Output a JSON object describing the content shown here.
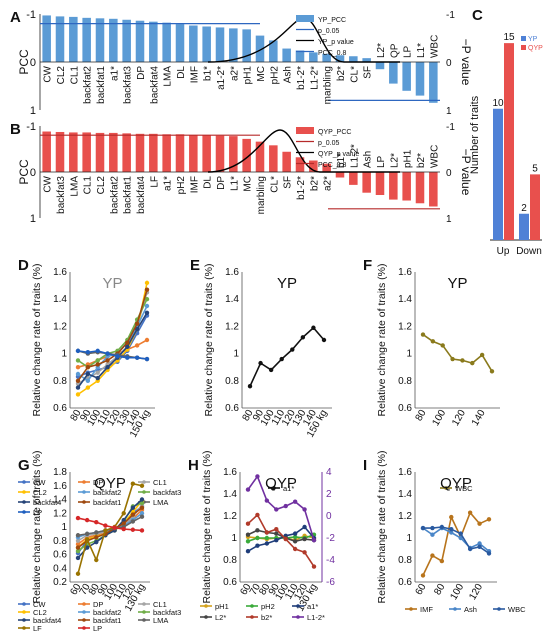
{
  "chart_data": [
    {
      "id": "A",
      "type": "bar",
      "panel_label": "A",
      "ylabel": "PCC",
      "ylabel_right": "−P value",
      "ylim": [
        -1,
        1
      ],
      "yticks": [
        "-1",
        "0",
        "1"
      ],
      "yticks_right": [
        "-1",
        "0",
        "1"
      ],
      "categories": [
        "CW",
        "CL2",
        "CL1",
        "backfat2",
        "backfat1",
        "a1*",
        "backfat3",
        "DP",
        "backfat4",
        "LMA",
        "DL",
        "IMF",
        "b1*",
        "a1-2*",
        "a2*",
        "pH1",
        "MC",
        "pH2",
        "Ash",
        "b1-2*",
        "L1-2*",
        "marbling",
        "b2*",
        "CL*",
        "SF",
        "L2*",
        "QP",
        "LP",
        "L1*",
        "WBC"
      ],
      "values": [
        0.97,
        0.95,
        0.94,
        0.92,
        0.91,
        0.9,
        0.88,
        0.86,
        0.84,
        0.82,
        0.79,
        0.76,
        0.74,
        0.72,
        0.7,
        0.68,
        0.55,
        0.45,
        0.28,
        0.24,
        0.2,
        0.17,
        0.14,
        0.12,
        0.08,
        -0.15,
        -0.45,
        -0.6,
        -0.7,
        -0.85
      ],
      "legend": [
        "YP_PCC",
        "p_0.05",
        "YP_p value",
        "PCC_0.8"
      ]
    },
    {
      "id": "B",
      "type": "bar",
      "panel_label": "B",
      "ylabel": "PCC",
      "ylabel_right": "−P value",
      "ylim": [
        -1,
        1
      ],
      "yticks": [
        "-1",
        "0",
        "1"
      ],
      "yticks_right": [
        "-1",
        "0",
        "1"
      ],
      "categories": [
        "CW",
        "backfat3",
        "LMA",
        "CL1",
        "CL2",
        "backfat2",
        "backfat1",
        "backfat4",
        "LF",
        "a1*",
        "pH2",
        "IMF",
        "DL",
        "DP",
        "L1*",
        "MC",
        "marbling",
        "CL*",
        "SF",
        "b1-2*",
        "b2*",
        "a2*",
        "b1*",
        "L1-2*",
        "Ash",
        "LP",
        "L2*",
        "pH1",
        "b2*",
        "WBC"
      ],
      "values": [
        0.88,
        0.87,
        0.86,
        0.86,
        0.85,
        0.85,
        0.84,
        0.83,
        0.83,
        0.82,
        0.82,
        0.8,
        0.8,
        0.79,
        0.78,
        0.72,
        0.66,
        0.58,
        0.44,
        0.32,
        0.25,
        0.18,
        -0.12,
        -0.28,
        -0.45,
        -0.5,
        -0.6,
        -0.62,
        -0.68,
        -0.75
      ],
      "legend": [
        "QYP_PCC",
        "p_0.05",
        "QYP_p value",
        "PCC_0.8"
      ]
    },
    {
      "id": "C",
      "type": "bar",
      "panel_label": "C",
      "ylabel": "Number of traits",
      "categories": [
        "Up",
        "Down"
      ],
      "ylim": [
        0,
        16
      ],
      "series": [
        {
          "name": "YP",
          "values": [
            10,
            2
          ],
          "color": "#4f81d6"
        },
        {
          "name": "QYP",
          "values": [
            15,
            5
          ],
          "color": "#e8504d"
        }
      ]
    },
    {
      "id": "D",
      "type": "line",
      "panel_label": "D",
      "title": "YP",
      "ylabel": "Relative change rate of traits (%)",
      "ylim": [
        0.6,
        1.6
      ],
      "yticks": [
        "0.6",
        "0.8",
        "1",
        "1.2",
        "1.4",
        "1.6"
      ],
      "xticks": [
        "80",
        "90",
        "100",
        "110",
        "120",
        "130",
        "140",
        "150 kg"
      ],
      "legend": [
        "CW",
        "DP",
        "CL1",
        "CL2",
        "backfat2",
        "backfat3",
        "backfat4",
        "backfat1",
        "LMA",
        "LP"
      ]
    },
    {
      "id": "E",
      "type": "line",
      "panel_label": "E",
      "title": "YP",
      "ylabel": "Relative change rate of traits (%)",
      "ylim": [
        0.6,
        1.6
      ],
      "yticks": [
        "0.6",
        "0.8",
        "1",
        "1.2",
        "1.4",
        "1.6"
      ],
      "xticks": [
        "80",
        "90",
        "100",
        "110",
        "120",
        "130",
        "140",
        "150 kg"
      ],
      "series": [
        {
          "name": "a1*",
          "color": "#111111",
          "values": [
            0.76,
            0.93,
            0.88,
            0.96,
            1.03,
            1.12,
            1.19,
            1.1
          ]
        }
      ]
    },
    {
      "id": "F",
      "type": "line",
      "panel_label": "F",
      "title": "YP",
      "ylabel": "Relative change rate of traits (%)",
      "ylim": [
        0.6,
        1.6
      ],
      "yticks": [
        "0.6",
        "0.8",
        "1",
        "1.2",
        "1.4",
        "1.6"
      ],
      "xticks": [
        "80",
        "",
        "100",
        "",
        "120",
        "",
        "140",
        ""
      ],
      "series": [
        {
          "name": "WBC",
          "color": "#8a7a1c",
          "values": [
            1.14,
            1.09,
            1.06,
            0.96,
            0.95,
            0.93,
            0.99,
            0.87
          ]
        }
      ]
    },
    {
      "id": "G",
      "type": "line",
      "panel_label": "G",
      "title": "QYP",
      "ylabel": "Relative change rate of traits (%)",
      "ylim": [
        0.2,
        1.8
      ],
      "yticks": [
        "0.2",
        "0.4",
        "0.6",
        "0.8",
        "1",
        "1.2",
        "1.4",
        "1.6",
        "1.8"
      ],
      "xticks": [
        "60",
        "70",
        "80",
        "90",
        "100",
        "110",
        "120",
        "130 kg"
      ],
      "legend": [
        "CW",
        "DP",
        "CL1",
        "CL2",
        "backfat2",
        "backfat3",
        "backfat4",
        "backfat1",
        "LMA",
        "LF",
        "LP"
      ]
    },
    {
      "id": "H",
      "type": "line",
      "panel_label": "H",
      "title": "QYP",
      "ylabel": "Relative change rate of traits (%)",
      "ylim": [
        0.6,
        1.6
      ],
      "yticks": [
        "0.6",
        "0.8",
        "1",
        "1.2",
        "1.4",
        "1.6"
      ],
      "ylim_right": [
        -6,
        4
      ],
      "yticks_right": [
        "-6",
        "-4",
        "-2",
        "0",
        "2",
        "4"
      ],
      "xticks": [
        "60",
        "70",
        "80",
        "90",
        "100",
        "110",
        "120",
        "130 kg"
      ],
      "series": [
        {
          "name": "pH1",
          "color": "#d4a21c",
          "values": [
            1.01,
            1.0,
            0.99,
            1.0,
            1.0,
            0.98,
            1.02,
            1.0
          ],
          "axis": "left"
        },
        {
          "name": "pH2",
          "color": "#3aaa3a",
          "values": [
            0.97,
            1.0,
            1.0,
            1.0,
            1.0,
            1.01,
            1.0,
            1.03
          ],
          "axis": "left"
        },
        {
          "name": "a1*",
          "color": "#1f3d7a",
          "values": [
            0.88,
            0.93,
            0.95,
            0.98,
            1.02,
            1.04,
            1.1,
            1.0
          ],
          "axis": "left"
        },
        {
          "name": "L2*",
          "color": "#444444",
          "values": [
            1.03,
            1.07,
            1.05,
            1.04,
            1.0,
            0.97,
            0.99,
            0.98
          ],
          "axis": "left"
        },
        {
          "name": "b2*",
          "color": "#b13a2a",
          "values": [
            1.13,
            1.21,
            1.05,
            1.08,
            0.99,
            0.9,
            0.87,
            0.74
          ],
          "axis": "left"
        },
        {
          "name": "L1-2*",
          "color": "#7030a0",
          "values": [
            2.4,
            3.6,
            1.4,
            0.6,
            0.9,
            1.3,
            0.6,
            -2.2
          ],
          "axis": "right"
        }
      ]
    },
    {
      "id": "I",
      "type": "line",
      "panel_label": "I",
      "title": "QYP",
      "ylabel": "Relative change rate of traits (%)",
      "ylim": [
        0.6,
        1.6
      ],
      "yticks": [
        "0.6",
        "0.8",
        "1",
        "1.2",
        "1.4",
        "1.6"
      ],
      "xticks": [
        "60",
        "",
        "80",
        "",
        "100",
        "",
        "120",
        ""
      ],
      "series": [
        {
          "name": "IMF",
          "color": "#b8741c",
          "values": [
            0.66,
            0.84,
            0.79,
            1.19,
            1.01,
            1.23,
            1.13,
            1.17
          ]
        },
        {
          "name": "Ash",
          "color": "#4a86c8",
          "values": [
            1.09,
            1.03,
            1.09,
            1.05,
            1.0,
            0.91,
            0.95,
            0.88
          ]
        },
        {
          "name": "WBC",
          "color": "#2a5aa0",
          "values": [
            1.09,
            1.09,
            1.1,
            1.08,
            1.04,
            0.9,
            0.92,
            0.86
          ]
        }
      ]
    }
  ]
}
